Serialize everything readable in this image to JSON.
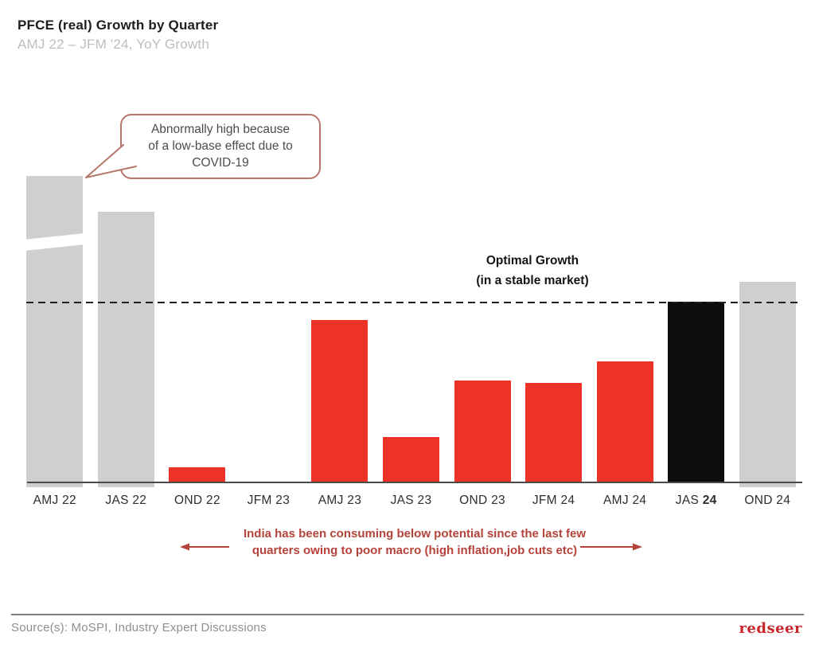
{
  "header": {
    "title": "PFCE (real) Growth by Quarter",
    "subtitle": "AMJ 22 – JFM '24, YoY Growth"
  },
  "callout": {
    "lines": [
      "Abnormally high because",
      "of a low-base effect due to",
      "COVID-19"
    ]
  },
  "optimal_label": {
    "line1": "Optimal Growth",
    "line2": "(in a stable market)"
  },
  "chart_data": {
    "type": "bar",
    "title": "PFCE (real) Growth by Quarter",
    "subtitle": "AMJ 22 – JFM '24, YoY Growth",
    "categories": [
      "AMJ 22",
      "JAS 22",
      "OND 22",
      "JFM 23",
      "AMJ 23",
      "JAS 23",
      "OND 23",
      "JFM 24",
      "AMJ 24",
      "JAS 24",
      "OND 24"
    ],
    "values": [
      170,
      150,
      8,
      0,
      90,
      25,
      56,
      55,
      67,
      100,
      111
    ],
    "value_unit": "relative index, optimal growth line = 100 (no numeric axis shown)",
    "optimal_growth_level": 100,
    "optimal_growth_label": "Optimal Growth (in a stable market)",
    "bar_colors": [
      "gray",
      "gray",
      "red",
      "red",
      "red",
      "red",
      "red",
      "red",
      "red",
      "black",
      "gray"
    ],
    "palette": {
      "gray": "#cfcfcf",
      "red": "#ed3328",
      "black": "#0d0d0f"
    },
    "first_bar_axis_break": true,
    "bold_year_label_index": 9,
    "legend": "none",
    "gridlines": false,
    "ylim": [
      0,
      175
    ]
  },
  "annotation": {
    "lines": [
      "India has been consuming below potential since the last few",
      "quarters owing to poor macro (high inflation,job cuts etc)"
    ],
    "color": "#b5433b"
  },
  "footer": {
    "source": "Source(s): MoSPI, Industry Expert Discussions",
    "logo_text": "redseer"
  },
  "colors": {
    "title": "#1d1d1d",
    "subtitle": "#bdbdbd",
    "callout_border": "#b5776b",
    "dashed_line": "#1f1f1f",
    "axis_line": "#4b4b4b",
    "x_label": "#2e2e2e",
    "annotation_red": "#b5433b",
    "logo_red": "#cb252c"
  }
}
